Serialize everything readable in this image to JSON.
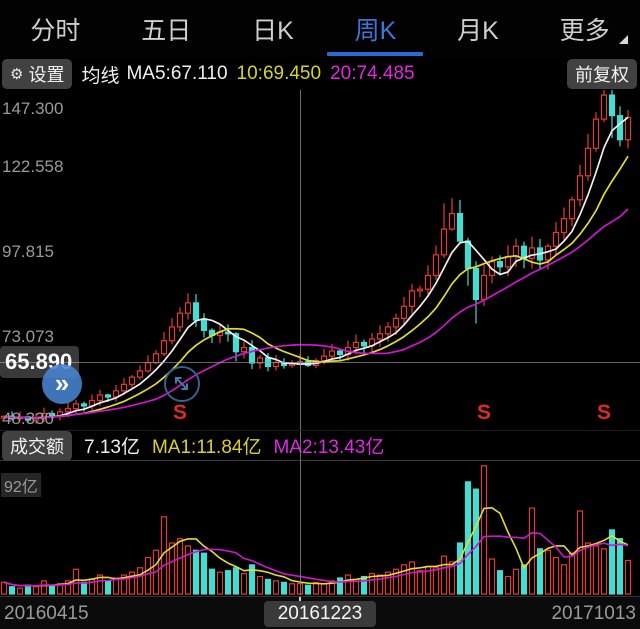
{
  "tabs": [
    {
      "label": "分时"
    },
    {
      "label": "五日"
    },
    {
      "label": "日K"
    },
    {
      "label": "周K"
    },
    {
      "label": "月K"
    },
    {
      "label": "更多"
    }
  ],
  "active_tab": "周K",
  "ma_row": {
    "settings_label": "设置",
    "gear_icon": "⚙",
    "ma_title": "均线",
    "ma5": "MA5:67.110",
    "ma10": "10:69.450",
    "ma20": "20:74.485",
    "adjust_label": "前复权"
  },
  "price_axis": {
    "labels": [
      "147.300",
      "122.558",
      "97.815",
      "73.073",
      "48.330"
    ],
    "crosshair_price_label": "65.890"
  },
  "floating_buttons": {
    "expand_chevrons": "»"
  },
  "volume_header": {
    "panel_label": "成交额",
    "value": "7.13亿",
    "ma1": "MA1:11.84亿",
    "ma2": "MA2:13.43亿"
  },
  "volume_axis_label": "92亿",
  "x_axis": {
    "left": "20160415",
    "center": "20161223",
    "right": "20171013"
  },
  "chart_data": {
    "type": "candlestick+volume",
    "title": "周K (weekly candlestick) with MA5/MA10/MA20 overlays and turnover bars",
    "y_axis_values": [
      147.3,
      122.558,
      97.815,
      73.073,
      48.33
    ],
    "volume_axis_max_label": 92,
    "x_tick_labels": {
      "0": "20160415",
      "37": "20161223",
      "78": "20171013"
    },
    "crosshair": {
      "index": 37,
      "date": "20161223",
      "price": 65.89
    },
    "header_values": {
      "ma5": 67.11,
      "ma10": 69.45,
      "ma20": 74.485,
      "turnover_yi": 7.13,
      "vol_ma1_yi": 11.84,
      "vol_ma2_yi": 13.43
    },
    "signal_label": "S",
    "signal_indices": [
      22,
      60,
      75
    ],
    "ma_periods": {
      "price": [
        5,
        10,
        20
      ],
      "volume": [
        5,
        10
      ]
    },
    "closes": [
      50.0,
      49.3,
      49.8,
      48.9,
      49.6,
      50.8,
      50.2,
      51.3,
      52.2,
      53.6,
      53.0,
      54.6,
      56.2,
      55.6,
      57.4,
      59.3,
      61.4,
      63.2,
      65.6,
      68.2,
      72.0,
      76.0,
      80.0,
      83.0,
      78.0,
      75.0,
      73.5,
      74.5,
      74.0,
      68.8,
      70.0,
      65.5,
      67.0,
      64.5,
      65.6,
      64.8,
      65.2,
      65.89,
      64.8,
      66.2,
      67.5,
      69.0,
      68.0,
      70.0,
      71.5,
      70.5,
      72.5,
      74.0,
      76.0,
      78.5,
      82.0,
      86.5,
      87.0,
      91.0,
      97.0,
      104.5,
      109.0,
      101.0,
      93.0,
      84.0,
      91.0,
      95.0,
      93.5,
      96.5,
      99.5,
      96.0,
      99.0,
      95.5,
      99.5,
      103.5,
      107.5,
      113.0,
      120.0,
      128.0,
      136.5,
      143.5,
      137.5,
      130.5,
      137.0
    ],
    "volumes_yi": [
      8,
      5,
      4,
      6,
      5,
      9,
      6,
      7,
      9,
      17,
      8,
      10,
      13,
      9,
      11,
      13,
      15,
      18,
      25,
      30,
      53,
      35,
      38,
      33,
      30,
      28,
      17,
      15,
      16,
      18,
      14,
      20,
      12,
      10,
      9,
      8,
      7,
      7.13,
      6,
      8,
      7,
      9,
      11,
      13,
      10,
      12,
      14,
      13,
      15,
      17,
      20,
      22,
      16,
      19,
      18,
      26,
      22,
      35,
      77,
      72,
      88,
      24,
      16,
      12,
      17,
      20,
      59,
      31,
      30,
      25,
      20,
      28,
      57,
      35,
      33,
      31,
      44,
      38,
      23
    ],
    "high_overrides": {
      "3": 49.9,
      "20": 74.5,
      "23": 85.8,
      "55": 112.0,
      "56": 113.5,
      "57": 113.0,
      "75": 147.3
    },
    "low_overrides": {
      "3": 48.33,
      "29": 66.0,
      "58": 88.0,
      "59": 77.0,
      "76": 131.0
    },
    "colors": {
      "up": "#e23b33",
      "down": "#45ddd2",
      "ma5": "#efefef",
      "ma10": "#e3dc2e",
      "ma20": "#cf16cf",
      "vol_ma1": "#e3dc2e",
      "vol_ma2": "#cf16cf",
      "accent_tab": "#3d76d8",
      "signal": "#d92c26"
    }
  }
}
